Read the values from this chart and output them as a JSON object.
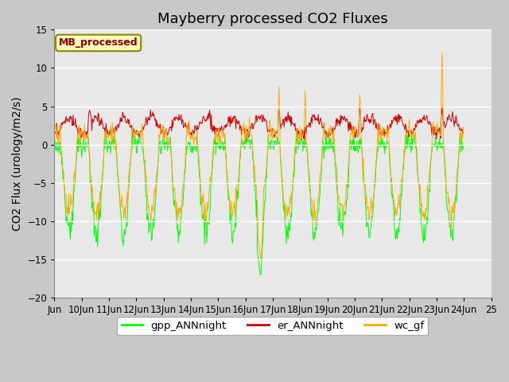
{
  "title": "Mayberry processed CO2 Fluxes",
  "ylabel": "CO2 Flux (urology/m2/s)",
  "ylim": [
    -20,
    15
  ],
  "yticks": [
    -20,
    -15,
    -10,
    -5,
    0,
    5,
    10,
    15
  ],
  "n_days": 15,
  "pts_per_day": 48,
  "legend_labels": [
    "gpp_ANNnight",
    "er_ANNnight",
    "wc_gf"
  ],
  "line_colors": [
    "#00ff00",
    "#cc0000",
    "#ffaa00"
  ],
  "outer_bg": "#c8c8c8",
  "plot_bg": "#e8e8e8",
  "annotation_text": "MB_processed",
  "annotation_color": "#880000",
  "annotation_bg": "#ffffbb",
  "annotation_edge": "#888800",
  "x_tick_labels": [
    "Jun",
    "10Jun",
    "11Jun",
    "12Jun",
    "13Jun",
    "14Jun",
    "15Jun",
    "16Jun",
    "17Jun",
    "18Jun",
    "19Jun",
    "20Jun",
    "21Jun",
    "22Jun",
    "23Jun",
    "24Jun",
    "25"
  ],
  "title_fontsize": 13,
  "axis_fontsize": 10,
  "tick_fontsize": 8.5
}
